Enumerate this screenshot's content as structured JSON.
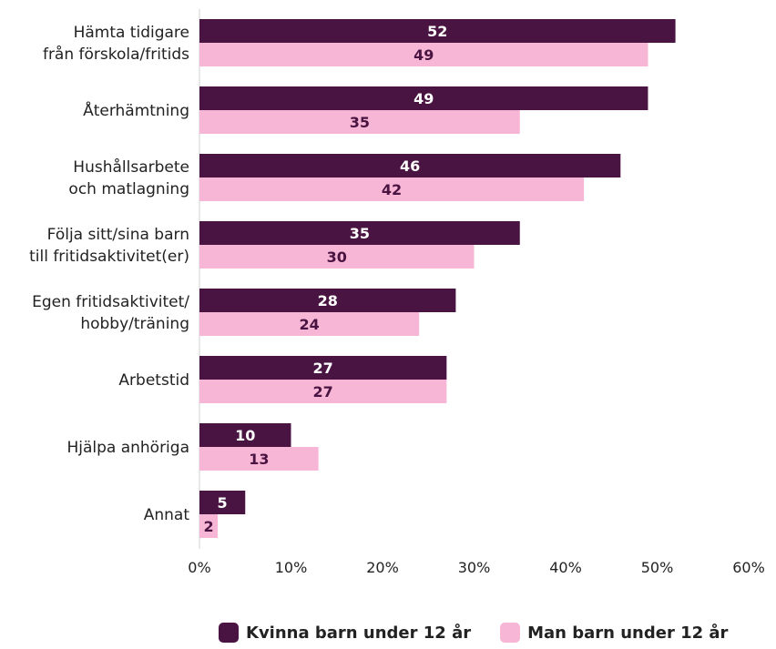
{
  "chart_data": {
    "type": "bar",
    "orientation": "horizontal",
    "categories": [
      [
        "Hämta  tidigare",
        "från förskola/fritids"
      ],
      [
        "Återhämtning"
      ],
      [
        "Hushållsarbete",
        "och matlagning"
      ],
      [
        "Följa sitt/sina barn",
        "till fritidsaktivitet(er)"
      ],
      [
        "Egen fritidsaktivitet/",
        "hobby/träning"
      ],
      [
        "Arbetstid"
      ],
      [
        "Hjälpa anhöriga"
      ],
      [
        "Annat"
      ]
    ],
    "series": [
      {
        "name": "Kvinna barn under 12 år",
        "color": "#4a1442",
        "label_color": "#ffffff",
        "values": [
          52,
          49,
          46,
          35,
          28,
          27,
          10,
          5
        ]
      },
      {
        "name": "Man barn under 12 år",
        "color": "#f7b6d5",
        "label_color": "#4a1442",
        "values": [
          49,
          35,
          42,
          30,
          24,
          27,
          13,
          2
        ]
      }
    ],
    "xlim": [
      0,
      60
    ],
    "xticks": [
      "0%",
      "10%",
      "20%",
      "30%",
      "40%",
      "50%",
      "60%"
    ],
    "legend_position": "bottom",
    "grid": false
  }
}
